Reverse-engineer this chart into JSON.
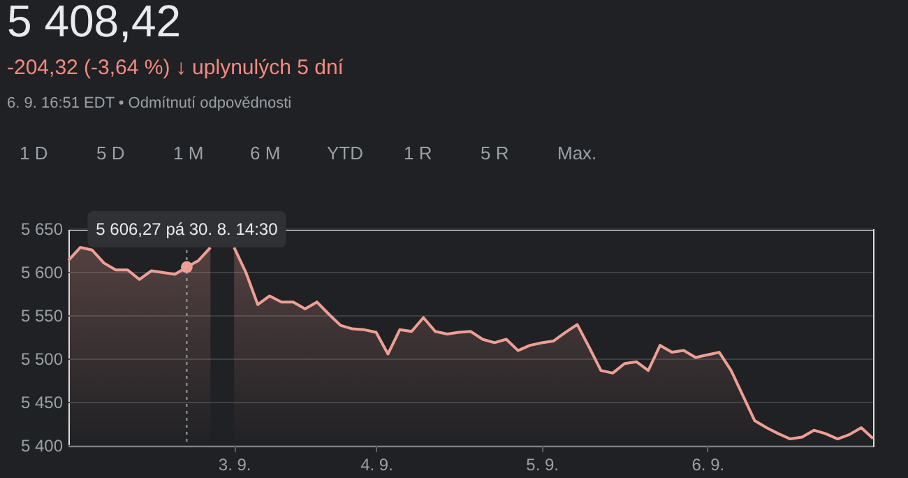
{
  "chart_data": {
    "type": "area",
    "title": "5 408,42",
    "subtitle": "-204,32 (-3,64 %) ↓ uplynulých 5 dní",
    "annotations": [
      "6. 9. 16:51 EDT • Odmítnutí odpovědnosti",
      "1 D",
      "5 D",
      "1 M",
      "6 M",
      "YTD",
      "1 R",
      "5 R",
      "Max.",
      {
        "text": "5 606,27 pá 30. 8. 14:30",
        "y": 5606.27
      }
    ],
    "categories": [
      null,
      null,
      null,
      null,
      null,
      null,
      null,
      null,
      null,
      null,
      null,
      null,
      null,
      null,
      "3. 9.",
      null,
      null,
      null,
      null,
      null,
      null,
      null,
      null,
      null,
      null,
      null,
      "4. 9.",
      null,
      null,
      null,
      null,
      null,
      null,
      null,
      null,
      null,
      null,
      null,
      null,
      null,
      "5. 9.",
      null,
      null,
      null,
      null,
      null,
      null,
      null,
      null,
      null,
      null,
      null,
      null,
      null,
      "6. 9.",
      null,
      null,
      null,
      null,
      null,
      null,
      null,
      null,
      null,
      null,
      null,
      null,
      null,
      null
    ],
    "series": [
      {
        "color": "#ee9f94",
        "values": [
          5614,
          5629,
          5626,
          5611,
          5603,
          5603,
          5592,
          5602,
          5600,
          5598,
          5606.27,
          5614,
          5629,
          null,
          5629,
          5600,
          5563,
          5573,
          5566,
          5566,
          5558,
          5566,
          5552,
          5539,
          5535,
          5534,
          5531,
          5506,
          5534,
          5532,
          5548,
          5532,
          5529,
          5531,
          5532,
          5523,
          5519,
          5523,
          5510,
          5516,
          5519,
          5521,
          5531,
          5540,
          5514,
          5487,
          5484,
          5495,
          5497,
          5487,
          5516,
          5508,
          5510,
          5502,
          5505,
          5508,
          5487,
          5458,
          5429,
          5421,
          5414,
          5408,
          5410,
          5418,
          5414,
          5408,
          5413,
          5421,
          5408.42
        ]
      }
    ],
    "ylim": [
      5400,
      5650
    ],
    "yticks": [
      {
        "value": 5400,
        "label": "5 400"
      },
      {
        "value": 5450,
        "label": "5 450"
      },
      {
        "value": 5500,
        "label": "5 500"
      },
      {
        "value": 5550,
        "label": "5 550"
      },
      {
        "value": 5600,
        "label": "5 600"
      },
      {
        "value": 5650,
        "label": "5 650"
      }
    ],
    "grid": "y"
  }
}
